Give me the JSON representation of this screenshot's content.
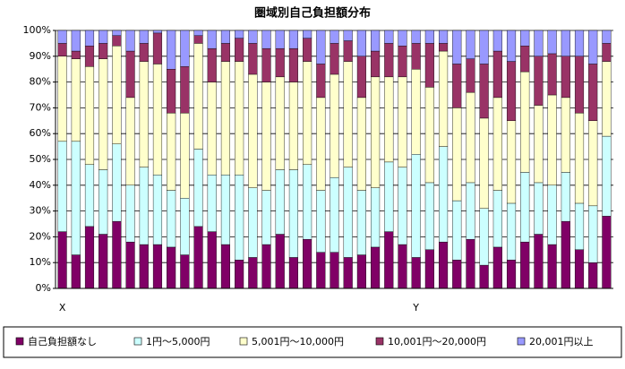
{
  "chart_data": {
    "type": "stacked_bar",
    "title": "圏域別自己負担額分布",
    "categories": [
      "X",
      null,
      null,
      null,
      null,
      null,
      null,
      null,
      null,
      null,
      null,
      null,
      null,
      null,
      null,
      null,
      null,
      null,
      null,
      null,
      null,
      null,
      null,
      null,
      null,
      null,
      "Y",
      null,
      null,
      null,
      null,
      null,
      null,
      null,
      null,
      null,
      null,
      null,
      null,
      null,
      null
    ],
    "series": [
      {
        "name": "自己負担額なし",
        "color": "#800066",
        "values": [
          22,
          13,
          24,
          21,
          26,
          18,
          17,
          17,
          16,
          13,
          24,
          22,
          17,
          11,
          12,
          17,
          21,
          12,
          19,
          14,
          14,
          12,
          13,
          16,
          22,
          17,
          12,
          15,
          18,
          11,
          19,
          9,
          16,
          11,
          18,
          21,
          17,
          26,
          15,
          10,
          28
        ]
      },
      {
        "name": "1円～5,000円",
        "color": "#ccffff",
        "values": [
          35,
          44,
          24,
          25,
          30,
          22,
          30,
          27,
          22,
          22,
          30,
          22,
          27,
          33,
          27,
          21,
          25,
          34,
          29,
          24,
          29,
          35,
          25,
          23,
          27,
          30,
          40,
          26,
          37,
          23,
          22,
          22,
          22,
          22,
          27,
          20,
          23,
          19,
          18,
          22,
          31
        ]
      },
      {
        "name": "5,001円～10,000円",
        "color": "#ffffcc",
        "values": [
          33,
          32,
          38,
          43,
          38,
          34,
          41,
          43,
          30,
          33,
          41,
          36,
          44,
          44,
          44,
          42,
          36,
          34,
          40,
          36,
          40,
          41,
          36,
          43,
          33,
          35,
          33,
          37,
          37,
          36,
          35,
          35,
          36,
          32,
          39,
          30,
          35,
          29,
          35,
          33,
          29
        ]
      },
      {
        "name": "10,001円～20,000円",
        "color": "#993366",
        "values": [
          5,
          3,
          8,
          6,
          4,
          18,
          7,
          12,
          17,
          18,
          3,
          13,
          7,
          9,
          12,
          13,
          11,
          13,
          9,
          13,
          12,
          8,
          16,
          10,
          13,
          12,
          10,
          17,
          3,
          17,
          13,
          21,
          18,
          23,
          10,
          19,
          16,
          16,
          22,
          22,
          7
        ]
      },
      {
        "name": "20,001円以上",
        "color": "#9999ff",
        "values": [
          5,
          8,
          6,
          5,
          2,
          8,
          5,
          1,
          15,
          14,
          2,
          7,
          5,
          3,
          5,
          7,
          7,
          7,
          3,
          13,
          5,
          4,
          10,
          8,
          5,
          6,
          5,
          5,
          5,
          13,
          11,
          13,
          8,
          12,
          6,
          10,
          9,
          10,
          10,
          13,
          5
        ]
      }
    ],
    "ylim": [
      0,
      100
    ],
    "yticks": [
      {
        "value": 0,
        "label": "0%"
      },
      {
        "value": 10,
        "label": "10%"
      },
      {
        "value": 20,
        "label": "20%"
      },
      {
        "value": 30,
        "label": "30%"
      },
      {
        "value": 40,
        "label": "40%"
      },
      {
        "value": 50,
        "label": "50%"
      },
      {
        "value": 60,
        "label": "60%"
      },
      {
        "value": 70,
        "label": "70%"
      },
      {
        "value": 80,
        "label": "80%"
      },
      {
        "value": 90,
        "label": "90%"
      },
      {
        "value": 100,
        "label": "100%"
      }
    ],
    "grid": true,
    "legend": "bottom"
  }
}
